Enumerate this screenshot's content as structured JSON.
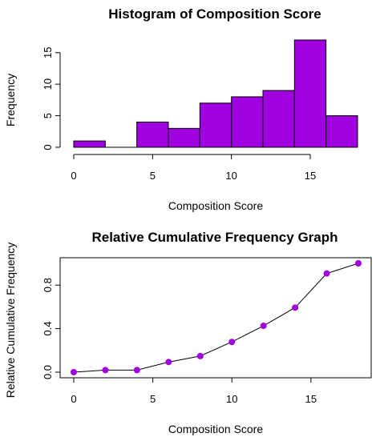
{
  "chart_data": [
    {
      "type": "bar",
      "title": "Histogram of Composition Score",
      "xlabel": "Composition Score",
      "ylabel": "Frequency",
      "bin_edges": [
        0,
        2,
        4,
        6,
        8,
        10,
        12,
        14,
        16,
        18
      ],
      "values": [
        1,
        0,
        4,
        3,
        7,
        8,
        9,
        17,
        5
      ],
      "xlim": [
        0,
        18
      ],
      "ylim": [
        0,
        17
      ],
      "xticks": [
        0,
        5,
        10,
        15
      ],
      "yticks": [
        0,
        5,
        10,
        15
      ],
      "bar_color": "#a000e0",
      "grid": false
    },
    {
      "type": "line",
      "title": "Relative Cumulative Frequency Graph",
      "xlabel": "Composition Score",
      "ylabel": "Relative Cumulative Frequency",
      "x": [
        0,
        2,
        4,
        6,
        8,
        10,
        12,
        14,
        16,
        18
      ],
      "y": [
        0.0,
        0.019,
        0.019,
        0.093,
        0.148,
        0.278,
        0.426,
        0.593,
        0.907,
        1.0
      ],
      "xlim": [
        0,
        18
      ],
      "ylim": [
        0,
        1
      ],
      "xticks": [
        0,
        5,
        10,
        15
      ],
      "yticks": [
        0.0,
        0.4,
        0.8
      ],
      "ytick_labels": [
        "0.0",
        "0.4",
        "0.8"
      ],
      "point_color": "#a000e0",
      "grid": false
    }
  ]
}
